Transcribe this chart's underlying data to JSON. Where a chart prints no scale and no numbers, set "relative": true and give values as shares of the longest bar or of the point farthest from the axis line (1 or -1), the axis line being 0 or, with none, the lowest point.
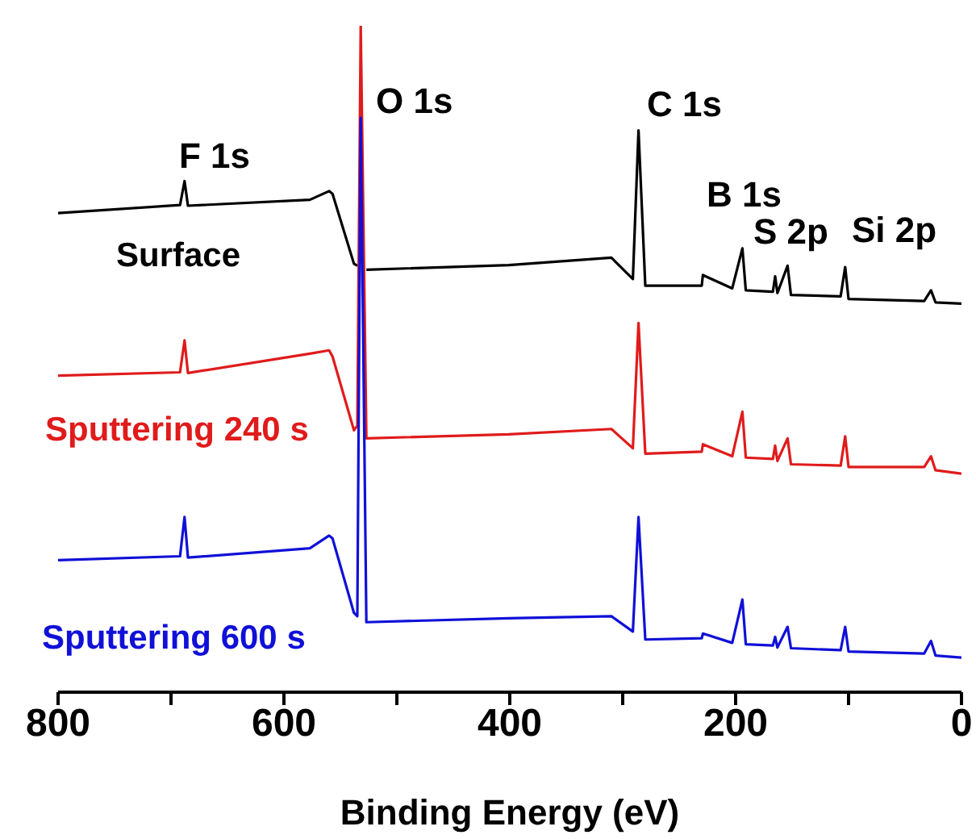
{
  "chart_data": {
    "type": "line",
    "relative": true,
    "xlabel": "Binding Energy (eV)",
    "xlim": [
      800,
      0
    ],
    "xticks": [
      800,
      {
        "value": 700,
        "label": null
      },
      600,
      {
        "value": 500,
        "label": null
      },
      400,
      {
        "value": 300,
        "label": null
      },
      200,
      {
        "value": 100,
        "label": null
      },
      0
    ],
    "x": [
      800,
      692,
      688,
      685,
      577,
      560,
      557,
      538,
      535,
      532,
      527,
      401,
      310,
      291,
      286,
      280,
      230,
      229,
      203,
      194,
      191,
      167,
      165,
      163,
      154,
      151,
      107,
      103,
      100,
      33,
      27,
      23,
      0
    ],
    "series": [
      {
        "name": "Surface",
        "color": "#000000",
        "values": [
          0.719,
          0.731,
          0.767,
          0.73,
          0.739,
          0.752,
          0.748,
          0.643,
          0.64,
          null,
          0.634,
          0.641,
          0.652,
          0.62,
          0.843,
          0.61,
          0.61,
          0.626,
          0.606,
          0.666,
          0.603,
          0.601,
          0.624,
          0.599,
          0.64,
          0.596,
          0.594,
          0.638,
          0.59,
          0.587,
          0.603,
          0.585,
          0.583
        ]
      },
      {
        "name": "Sputtering 240 s",
        "color": "#e01b1b",
        "values": [
          0.475,
          0.48,
          0.528,
          0.479,
          0.508,
          0.513,
          0.504,
          0.393,
          0.4,
          1.0,
          0.381,
          0.387,
          0.395,
          0.366,
          0.554,
          0.358,
          0.361,
          0.372,
          0.354,
          0.421,
          0.352,
          0.35,
          0.37,
          0.347,
          0.381,
          0.342,
          0.34,
          0.384,
          0.338,
          0.338,
          0.354,
          0.333,
          0.328
        ]
      },
      {
        "name": "Sputtering 600 s",
        "color": "#1010d8",
        "values": [
          0.198,
          0.204,
          0.263,
          0.202,
          0.216,
          0.235,
          0.231,
          0.119,
          0.114,
          0.862,
          0.105,
          0.111,
          0.114,
          0.091,
          0.263,
          0.079,
          0.081,
          0.088,
          0.074,
          0.139,
          0.072,
          0.07,
          0.083,
          0.067,
          0.098,
          0.066,
          0.063,
          0.098,
          0.061,
          0.058,
          0.077,
          0.055,
          0.052
        ]
      }
    ],
    "annotations": [
      "F 1s",
      "O 1s",
      "C 1s",
      "B 1s",
      "S 2p",
      "Si 2p"
    ],
    "legend": false,
    "grid": false
  }
}
